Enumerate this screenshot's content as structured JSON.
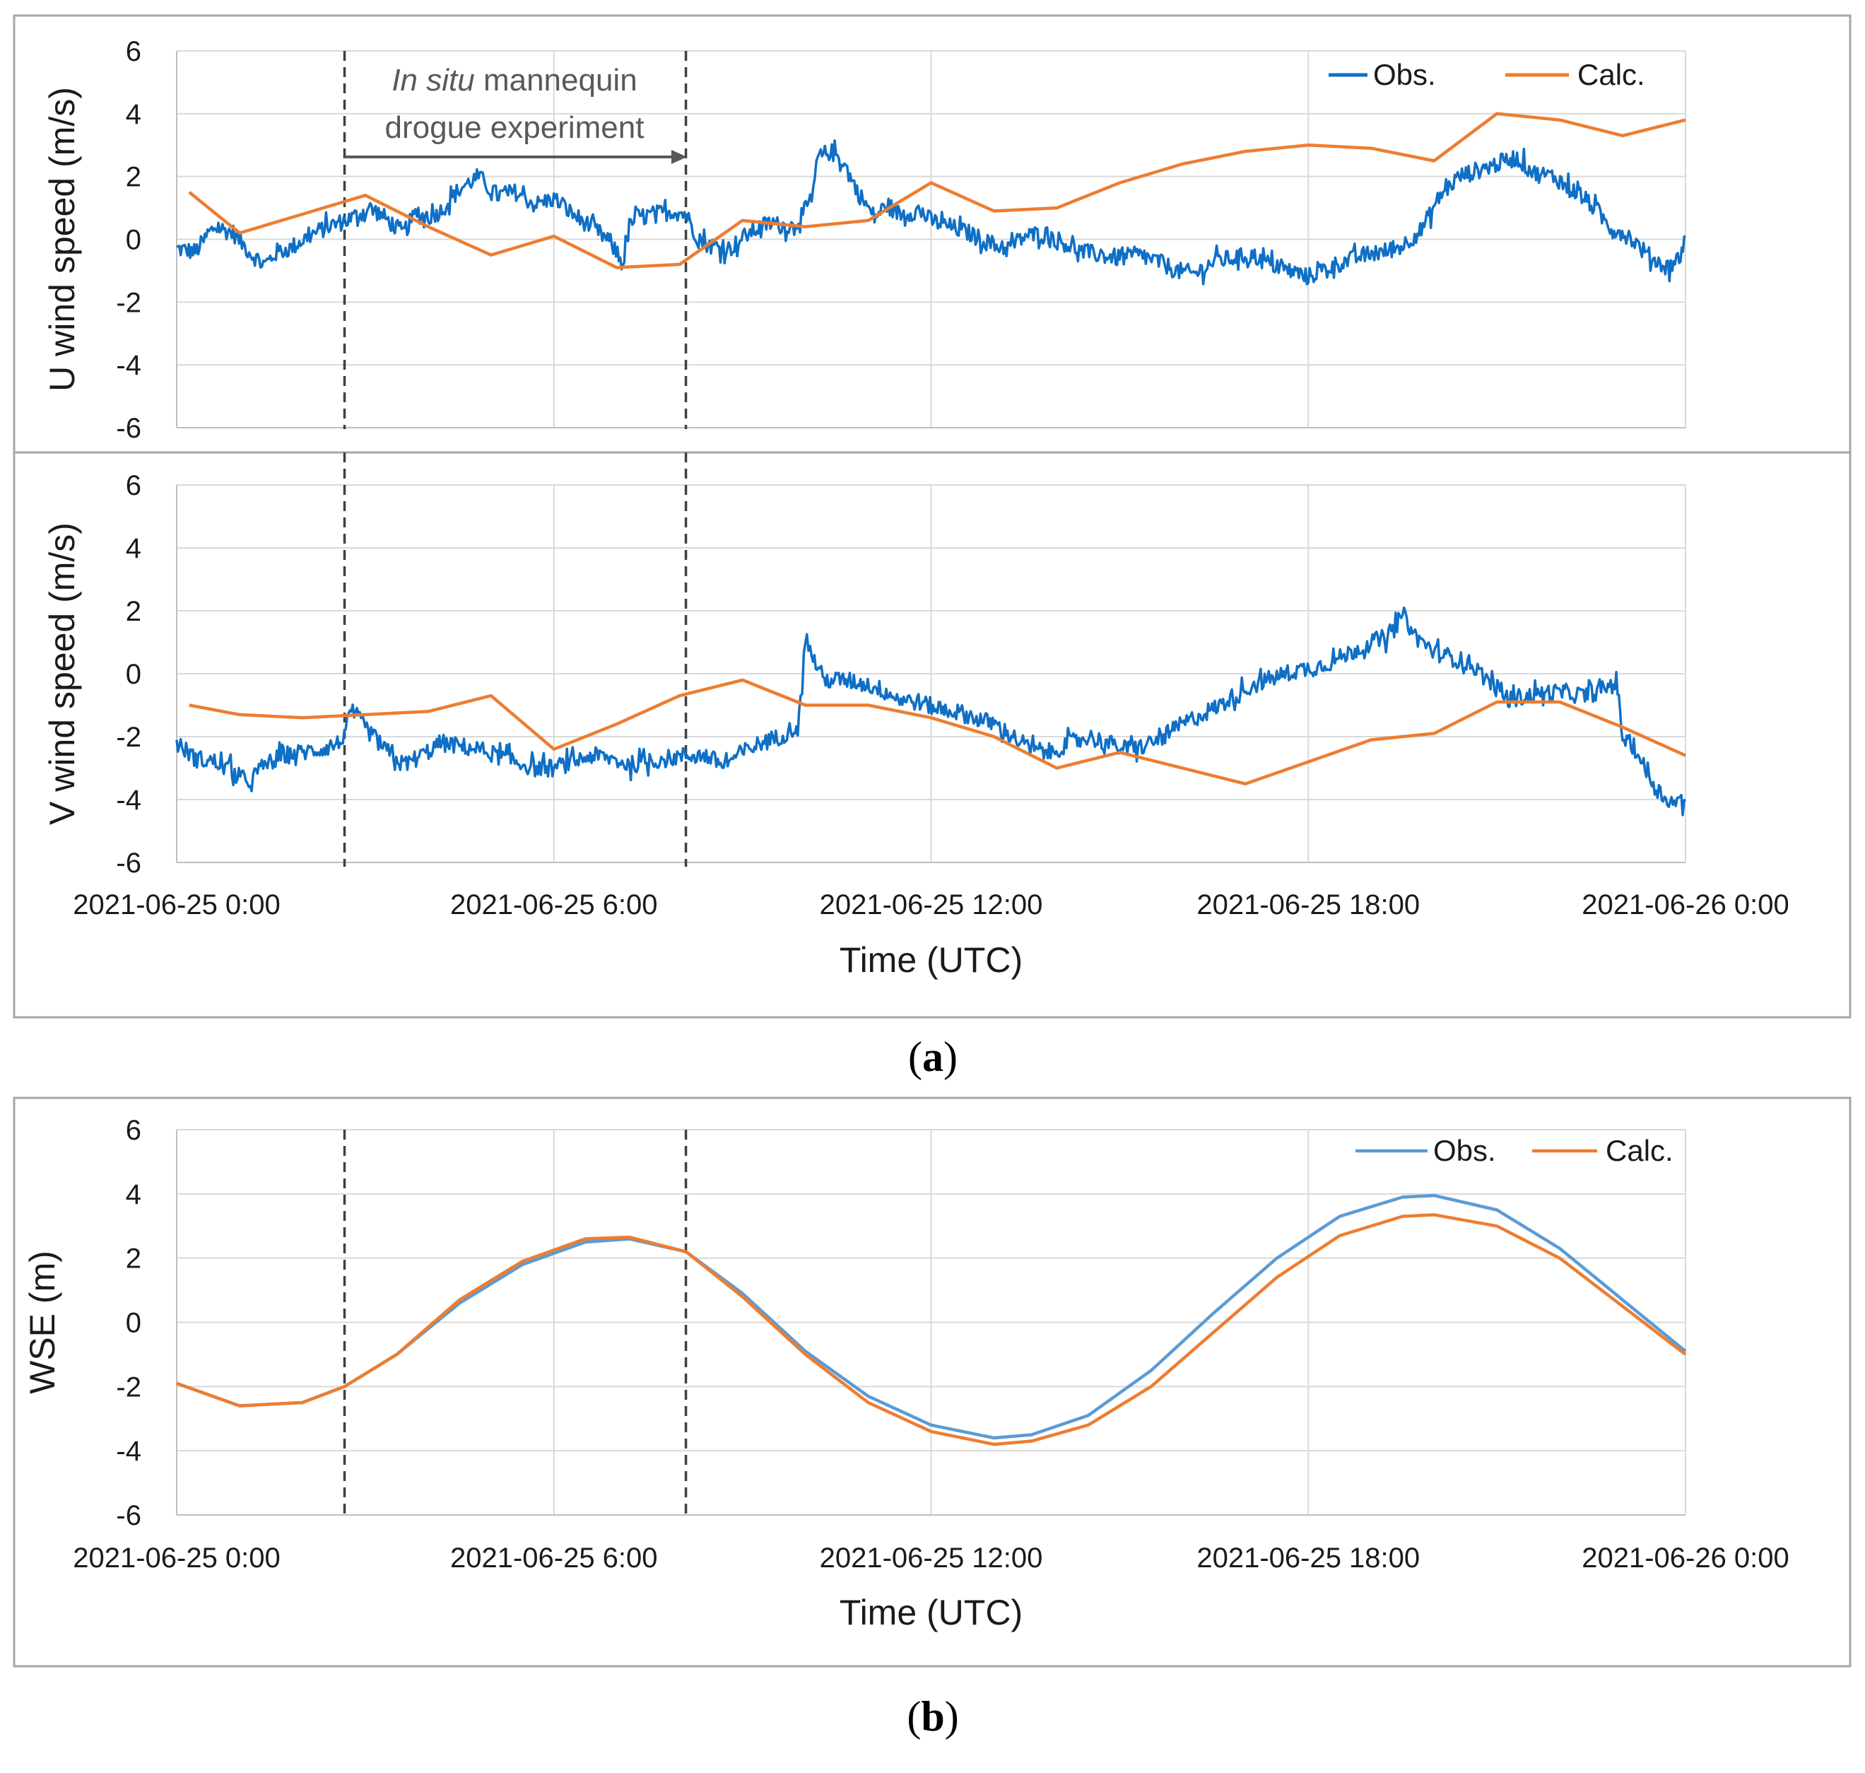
{
  "colors": {
    "obs": "#0f6fc6",
    "obs_b": "#5b9bd5",
    "calc": "#ed7d31",
    "grid": "#d9d9d9",
    "axis": "#bfbfbf",
    "frame": "#a6a6a6",
    "dash": "#404040"
  },
  "annotation": {
    "italic": "In situ",
    "rest": " mannequin",
    "line2": "drogue experiment"
  },
  "panel_labels": [
    "a",
    "b"
  ],
  "chart_data": [
    {
      "id": "u-wind",
      "type": "line",
      "ylabel": "U wind speed (m/s)",
      "xlabel": "",
      "ylim": [
        -6,
        6
      ],
      "yticks": [
        -6,
        -4,
        -2,
        0,
        2,
        4,
        6
      ],
      "xlim_hours": [
        0,
        24
      ],
      "x_gridlines_hours": [
        0,
        6,
        12,
        18,
        24
      ],
      "experiment_window_hours": [
        2.67,
        8.1
      ],
      "legend": {
        "position": "top-right",
        "entries": [
          "Obs.",
          "Calc."
        ]
      },
      "series": [
        {
          "name": "Obs.",
          "color_key": "obs",
          "noise": 0.28,
          "x": [
            0,
            0.3,
            0.6,
            0.9,
            1.2,
            1.4,
            1.6,
            1.8,
            2.1,
            2.4,
            2.7,
            2.9,
            3.1,
            3.3,
            3.6,
            3.8,
            4.0,
            4.2,
            4.5,
            4.8,
            5.1,
            5.4,
            5.7,
            6.0,
            6.3,
            6.6,
            6.9,
            7.1,
            7.2,
            7.3,
            7.6,
            7.9,
            8.1,
            8.3,
            8.5,
            8.8,
            9.1,
            9.4,
            9.8,
            10.1,
            10.2,
            10.4,
            10.6,
            10.8,
            11.1,
            11.3,
            11.5,
            11.8,
            12.0,
            12.3,
            12.6,
            12.9,
            13.2,
            13.5,
            13.8,
            14.1,
            14.4,
            14.7,
            15.0,
            15.3,
            15.6,
            15.9,
            16.2,
            16.5,
            16.8,
            17.1,
            17.4,
            17.7,
            18.0,
            18.3,
            18.6,
            18.9,
            19.2,
            19.5,
            19.8,
            20.1,
            20.4,
            20.7,
            21.0,
            21.3,
            21.6,
            21.9,
            22.2,
            22.5,
            22.8,
            23.1,
            23.4,
            23.7,
            23.9,
            24.0
          ],
          "y": [
            -0.3,
            -0.4,
            0.4,
            0.2,
            -0.5,
            -0.8,
            -0.4,
            -0.3,
            0.1,
            0.4,
            0.6,
            0.8,
            1.0,
            0.7,
            0.2,
            0.8,
            0.7,
            0.9,
            1.6,
            2.0,
            1.4,
            1.5,
            1.1,
            1.3,
            0.8,
            0.4,
            -0.1,
            -0.8,
            0.4,
            0.7,
            0.8,
            0.9,
            0.8,
            0.0,
            -0.2,
            -0.3,
            0.2,
            0.5,
            0.4,
            1.2,
            2.6,
            2.8,
            2.5,
            1.6,
            0.7,
            1.1,
            0.8,
            0.9,
            0.6,
            0.4,
            0.2,
            -0.1,
            -0.3,
            0.1,
            0.2,
            -0.1,
            -0.4,
            -0.5,
            -0.6,
            -0.5,
            -0.7,
            -1.0,
            -1.1,
            -0.7,
            -0.6,
            -0.5,
            -0.8,
            -1.0,
            -1.2,
            -0.9,
            -0.7,
            -0.5,
            -0.4,
            -0.2,
            0.3,
            1.4,
            2.0,
            2.2,
            2.4,
            2.6,
            2.1,
            2.0,
            1.6,
            1.1,
            0.4,
            0.1,
            -0.5,
            -0.9,
            -0.6,
            0.1
          ]
        },
        {
          "name": "Calc.",
          "color_key": "calc",
          "noise": 0,
          "x": [
            0.2,
            1.0,
            2.0,
            3.0,
            4.0,
            5.0,
            6.0,
            7.0,
            8.0,
            9.0,
            10.0,
            11.0,
            12.0,
            13.0,
            14.0,
            15.0,
            16.0,
            17.0,
            18.0,
            19.0,
            20.0,
            21.0,
            22.0,
            23.0,
            24.0
          ],
          "y": [
            1.5,
            0.2,
            0.8,
            1.4,
            0.4,
            -0.5,
            0.1,
            -0.9,
            -0.8,
            0.6,
            0.4,
            0.6,
            1.8,
            0.9,
            1.0,
            1.8,
            2.4,
            2.8,
            3.0,
            2.9,
            2.5,
            4.0,
            3.8,
            3.3,
            3.8
          ]
        }
      ]
    },
    {
      "id": "v-wind",
      "type": "line",
      "ylabel": "V wind speed (m/s)",
      "xlabel": "Time (UTC)",
      "ylim": [
        -6,
        6
      ],
      "yticks": [
        -6,
        -4,
        -2,
        0,
        2,
        4,
        6
      ],
      "xlim_hours": [
        0,
        24
      ],
      "x_gridlines_hours": [
        0,
        6,
        12,
        18,
        24
      ],
      "xticks": [
        "2021-06-25 0:00",
        "2021-06-25 6:00",
        "2021-06-25 12:00",
        "2021-06-25 18:00",
        "2021-06-26 0:00"
      ],
      "experiment_window_hours": [
        2.67,
        8.1
      ],
      "series": [
        {
          "name": "Obs.",
          "color_key": "obs",
          "noise": 0.28,
          "x": [
            0,
            0.3,
            0.6,
            0.9,
            1.1,
            1.4,
            1.7,
            2.0,
            2.3,
            2.6,
            2.8,
            3.0,
            3.3,
            3.6,
            3.9,
            4.2,
            4.5,
            4.8,
            5.1,
            5.4,
            5.7,
            6.0,
            6.3,
            6.6,
            6.9,
            7.2,
            7.5,
            7.8,
            8.1,
            8.4,
            8.7,
            9.0,
            9.3,
            9.6,
            9.9,
            10.0,
            10.1,
            10.3,
            10.6,
            10.9,
            11.2,
            11.5,
            11.8,
            12.1,
            12.4,
            12.7,
            13.0,
            13.3,
            13.6,
            13.9,
            14.2,
            14.5,
            14.8,
            15.1,
            15.4,
            15.7,
            16.0,
            16.3,
            16.6,
            16.9,
            17.2,
            17.5,
            17.8,
            18.1,
            18.4,
            18.7,
            19.0,
            19.3,
            19.5,
            19.7,
            20.0,
            20.3,
            20.6,
            20.9,
            21.2,
            21.5,
            21.8,
            22.1,
            22.4,
            22.7,
            22.9,
            23.0,
            23.2,
            23.4,
            23.6,
            23.8,
            24.0
          ],
          "y": [
            -2.2,
            -2.7,
            -2.8,
            -3.1,
            -3.5,
            -2.9,
            -2.6,
            -2.5,
            -2.4,
            -2.2,
            -1.2,
            -1.7,
            -2.4,
            -2.9,
            -2.6,
            -2.2,
            -2.3,
            -2.4,
            -2.6,
            -2.8,
            -3.0,
            -3.0,
            -2.8,
            -2.6,
            -2.7,
            -2.9,
            -2.8,
            -2.7,
            -2.6,
            -2.6,
            -2.9,
            -2.5,
            -2.2,
            -2.0,
            -1.6,
            1.2,
            0.6,
            -0.2,
            -0.2,
            -0.3,
            -0.5,
            -0.8,
            -0.9,
            -1.1,
            -1.2,
            -1.4,
            -1.6,
            -2.0,
            -2.4,
            -2.5,
            -2.2,
            -2.0,
            -2.2,
            -2.4,
            -2.3,
            -2.0,
            -1.6,
            -1.3,
            -1.0,
            -0.6,
            -0.3,
            -0.1,
            0.1,
            0.2,
            0.4,
            0.7,
            1.0,
            1.2,
            1.9,
            1.2,
            0.7,
            0.5,
            0.3,
            -0.3,
            -0.8,
            -0.7,
            -0.6,
            -0.6,
            -0.7,
            -0.5,
            -0.2,
            -2.0,
            -2.4,
            -3.2,
            -3.8,
            -4.1,
            -4.0
          ]
        },
        {
          "name": "Calc.",
          "color_key": "calc",
          "noise": 0,
          "x": [
            0.2,
            1.0,
            2.0,
            3.0,
            4.0,
            5.0,
            6.0,
            7.0,
            8.0,
            9.0,
            10.0,
            11.0,
            12.0,
            13.0,
            14.0,
            15.0,
            16.0,
            17.0,
            18.0,
            19.0,
            20.0,
            21.0,
            22.0,
            23.0,
            24.0
          ],
          "y": [
            -1.0,
            -1.3,
            -1.4,
            -1.3,
            -1.2,
            -0.7,
            -2.4,
            -1.6,
            -0.7,
            -0.2,
            -1.0,
            -1.0,
            -1.4,
            -2.0,
            -3.0,
            -2.5,
            -3.0,
            -3.5,
            -2.8,
            -2.1,
            -1.9,
            -0.9,
            -0.9,
            -1.7,
            -2.6
          ]
        }
      ]
    },
    {
      "id": "wse",
      "type": "line",
      "ylabel": "WSE (m)",
      "xlabel": "Time (UTC)",
      "ylim": [
        -6,
        6
      ],
      "yticks": [
        -6,
        -4,
        -2,
        0,
        2,
        4,
        6
      ],
      "xlim_hours": [
        0,
        24
      ],
      "x_gridlines_hours": [
        0,
        6,
        12,
        18,
        24
      ],
      "xticks": [
        "2021-06-25 0:00",
        "2021-06-25 6:00",
        "2021-06-25 12:00",
        "2021-06-25 18:00",
        "2021-06-26 0:00"
      ],
      "experiment_window_hours": [
        2.67,
        8.1
      ],
      "legend": {
        "position": "top-right",
        "entries": [
          "Obs.",
          "Calc."
        ]
      },
      "series": [
        {
          "name": "Obs.",
          "color_key": "obs_b",
          "noise": 0,
          "x": [
            0,
            1.0,
            2.0,
            2.67,
            3.5,
            4.5,
            5.5,
            6.5,
            7.2,
            8.1,
            9.0,
            10.0,
            11.0,
            12.0,
            13.0,
            13.6,
            14.5,
            15.5,
            16.5,
            17.5,
            18.5,
            19.5,
            20.0,
            21.0,
            22.0,
            23.0,
            24.0
          ],
          "y": [
            -1.9,
            -2.6,
            -2.5,
            -2.0,
            -1.0,
            0.6,
            1.8,
            2.5,
            2.6,
            2.2,
            0.9,
            -0.9,
            -2.3,
            -3.2,
            -3.6,
            -3.5,
            -2.9,
            -1.5,
            0.3,
            2.0,
            3.3,
            3.9,
            3.95,
            3.5,
            2.3,
            0.7,
            -0.9
          ]
        },
        {
          "name": "Calc.",
          "color_key": "calc",
          "noise": 0,
          "x": [
            0,
            1.0,
            2.0,
            2.67,
            3.5,
            4.5,
            5.5,
            6.5,
            7.2,
            8.1,
            9.0,
            10.0,
            11.0,
            12.0,
            13.0,
            13.6,
            14.5,
            15.5,
            16.5,
            17.5,
            18.5,
            19.5,
            20.0,
            21.0,
            22.0,
            23.0,
            24.0
          ],
          "y": [
            -1.9,
            -2.6,
            -2.5,
            -2.0,
            -1.0,
            0.7,
            1.9,
            2.6,
            2.65,
            2.2,
            0.8,
            -1.0,
            -2.5,
            -3.4,
            -3.8,
            -3.7,
            -3.2,
            -2.0,
            -0.3,
            1.4,
            2.7,
            3.3,
            3.35,
            3.0,
            2.0,
            0.5,
            -1.0
          ]
        }
      ]
    }
  ]
}
